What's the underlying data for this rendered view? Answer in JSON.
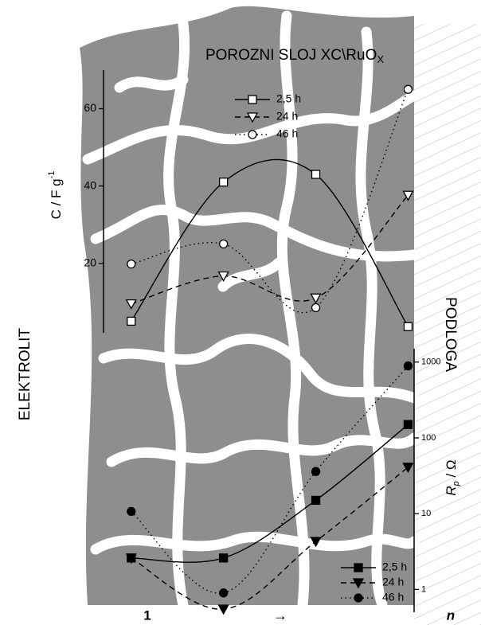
{
  "chart_data": [
    {
      "type": "line",
      "title": "POROZNI SLOJ XC\\RuO",
      "title_sub": "X",
      "ylabel": "C / F g",
      "ylabel_sup": "-1",
      "x": [
        1,
        2,
        3,
        4
      ],
      "xlim": [
        0.7,
        4.1
      ],
      "ylim": [
        2,
        70
      ],
      "yticks": [
        20,
        40,
        60
      ],
      "series": [
        {
          "name": "2,5 h",
          "color": "#000000",
          "dash": "none",
          "marker": "square",
          "filled": false,
          "values": [
            5,
            41,
            43,
            3.6
          ]
        },
        {
          "name": "24 h",
          "color": "#000000",
          "dash": "7 5",
          "marker": "triangle",
          "filled": false,
          "values": [
            9.5,
            16.7,
            11,
            37.6
          ]
        },
        {
          "name": "46 h",
          "color": "#000000",
          "dash": "1.5 4",
          "marker": "circle",
          "filled": false,
          "values": [
            19.8,
            25,
            8.5,
            65
          ]
        }
      ]
    },
    {
      "type": "line",
      "log": true,
      "ylabel": "R",
      "ylabel_sub": "p",
      "ylabel_rest": " / Ω",
      "x": [
        1,
        2,
        3,
        4
      ],
      "xlim": [
        0.7,
        4.1
      ],
      "ylim": [
        0.5,
        1500
      ],
      "yticks": [
        1,
        10,
        100,
        1000
      ],
      "series": [
        {
          "name": "2,5 h",
          "color": "#000000",
          "dash": "none",
          "marker": "square",
          "filled": true,
          "values": [
            2.6,
            2.6,
            15,
            150
          ]
        },
        {
          "name": "24 h",
          "color": "#000000",
          "dash": "7 5",
          "marker": "triangle",
          "filled": true,
          "values": [
            2.6,
            0.55,
            4.3,
            41
          ]
        },
        {
          "name": "46 h",
          "color": "#000000",
          "dash": "1.5 4",
          "marker": "circle",
          "filled": true,
          "values": [
            10.7,
            0.9,
            36,
            890
          ]
        }
      ]
    }
  ],
  "labels": {
    "left": "ELEKTROLIT",
    "right": "PODLOGA",
    "x_start": "1",
    "x_arrow": "→",
    "x_end": "n"
  }
}
